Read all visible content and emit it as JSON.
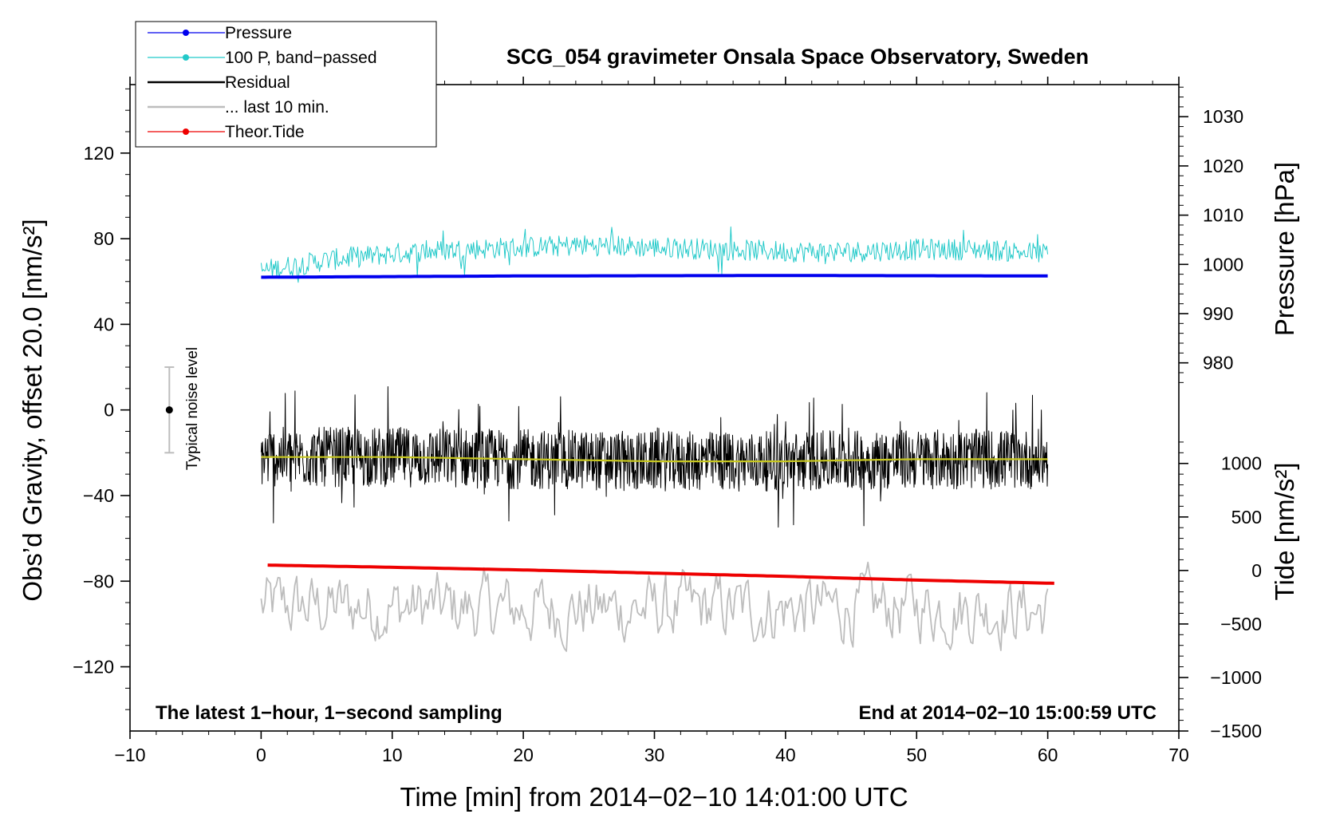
{
  "chart_data": {
    "type": "line",
    "title": "SCG_054 gravimeter Onsala Space Observatory, Sweden",
    "xlabel": "Time [min] from 2014−02−10 14:01:00 UTC",
    "ylabel_left": "Obs’d Gravity, offset 20.0 [nm/s²]",
    "ylabel_right_top": "Pressure [hPa]",
    "ylabel_right_bottom": "Tide [nm/s²]",
    "xlim": [
      -10,
      70
    ],
    "ylim_left": [
      -150,
      152
    ],
    "x_ticks": [
      -10,
      0,
      10,
      20,
      30,
      40,
      50,
      60,
      70
    ],
    "x_tick_labels": [
      "−10",
      "0",
      "10",
      "20",
      "30",
      "40",
      "50",
      "60",
      "70"
    ],
    "y_left_ticks": [
      120,
      80,
      40,
      0,
      -40,
      -80,
      -120
    ],
    "y_left_tick_labels": [
      "120",
      "80",
      "40",
      "0",
      "−40",
      "−80",
      "−120"
    ],
    "pressure_axis": {
      "ticks": [
        1030,
        1020,
        1010,
        1000,
        990,
        980
      ],
      "tick_labels": [
        "1030",
        "1020",
        "1010",
        "1000",
        "990",
        "980"
      ],
      "map_gravity_at_1000": 68,
      "gravity_per_hpa": 2.3
    },
    "tide_axis": {
      "ticks": [
        1000,
        500,
        0,
        -500,
        -1000,
        -1500
      ],
      "tick_labels": [
        "1000",
        "500",
        "0",
        "−500",
        "−1000",
        "−1500"
      ],
      "map_gravity_at_0": -75,
      "gravity_per_unit": 0.05
    },
    "legend": [
      {
        "label": "Pressure",
        "color": "#0000ee",
        "style": "line-dot"
      },
      {
        "label": "100 P, band−passed",
        "color": "#22c9c9",
        "style": "line-dot"
      },
      {
        "label": "Residual",
        "color": "#000000",
        "style": "line"
      },
      {
        "label": "... last 10 min.",
        "color": "#bdbdbd",
        "style": "line"
      },
      {
        "label": "Theor.Tide",
        "color": "#ee0000",
        "style": "line-dot"
      }
    ],
    "series": [
      {
        "name": "Pressure",
        "color": "#0000ee",
        "x": [
          0,
          10,
          20,
          30,
          40,
          50,
          60
        ],
        "values": [
          62.0,
          62.3,
          62.6,
          62.7,
          62.8,
          62.7,
          62.6
        ]
      },
      {
        "name": "100 P, band−passed",
        "color": "#22c9c9",
        "x": [
          0,
          5,
          10,
          15,
          20,
          25,
          30,
          35,
          40,
          45,
          50,
          55,
          60
        ],
        "values": [
          65,
          70,
          73,
          75,
          76,
          77,
          76,
          75,
          74,
          74,
          75,
          75,
          73
        ],
        "noise_amplitude": 5
      },
      {
        "name": "Residual",
        "color": "#000000",
        "x": [
          0,
          10,
          20,
          30,
          40,
          50,
          60
        ],
        "values": [
          -22,
          -22,
          -23,
          -24,
          -24,
          -23,
          -23
        ],
        "noise_amplitude": 14
      },
      {
        "name": "Residual (smoothed)",
        "color": "#c8c820",
        "x": [
          0,
          10,
          20,
          30,
          40,
          50,
          60
        ],
        "values": [
          -22,
          -22,
          -23,
          -24,
          -24,
          -23,
          -23
        ]
      },
      {
        "name": "... last 10 min.",
        "color": "#bdbdbd",
        "x": [
          0,
          10,
          20,
          30,
          40,
          50,
          60
        ],
        "values": [
          -92,
          -92,
          -93,
          -93,
          -93,
          -92,
          -94
        ],
        "noise_amplitude": 14
      },
      {
        "name": "Theor.Tide",
        "color": "#ee0000",
        "x": [
          0.5,
          10,
          20,
          30,
          40,
          50,
          60.5
        ],
        "values": [
          50,
          30,
          5,
          -25,
          -55,
          -90,
          -120
        ]
      }
    ],
    "noise_bar": {
      "x": -7,
      "center": 0,
      "low": -20,
      "high": 20,
      "label": "Typical noise level"
    },
    "annotation_left": "The latest 1−hour, 1−second sampling",
    "annotation_right": "End at 2014−02−10 15:00:59 UTC"
  }
}
